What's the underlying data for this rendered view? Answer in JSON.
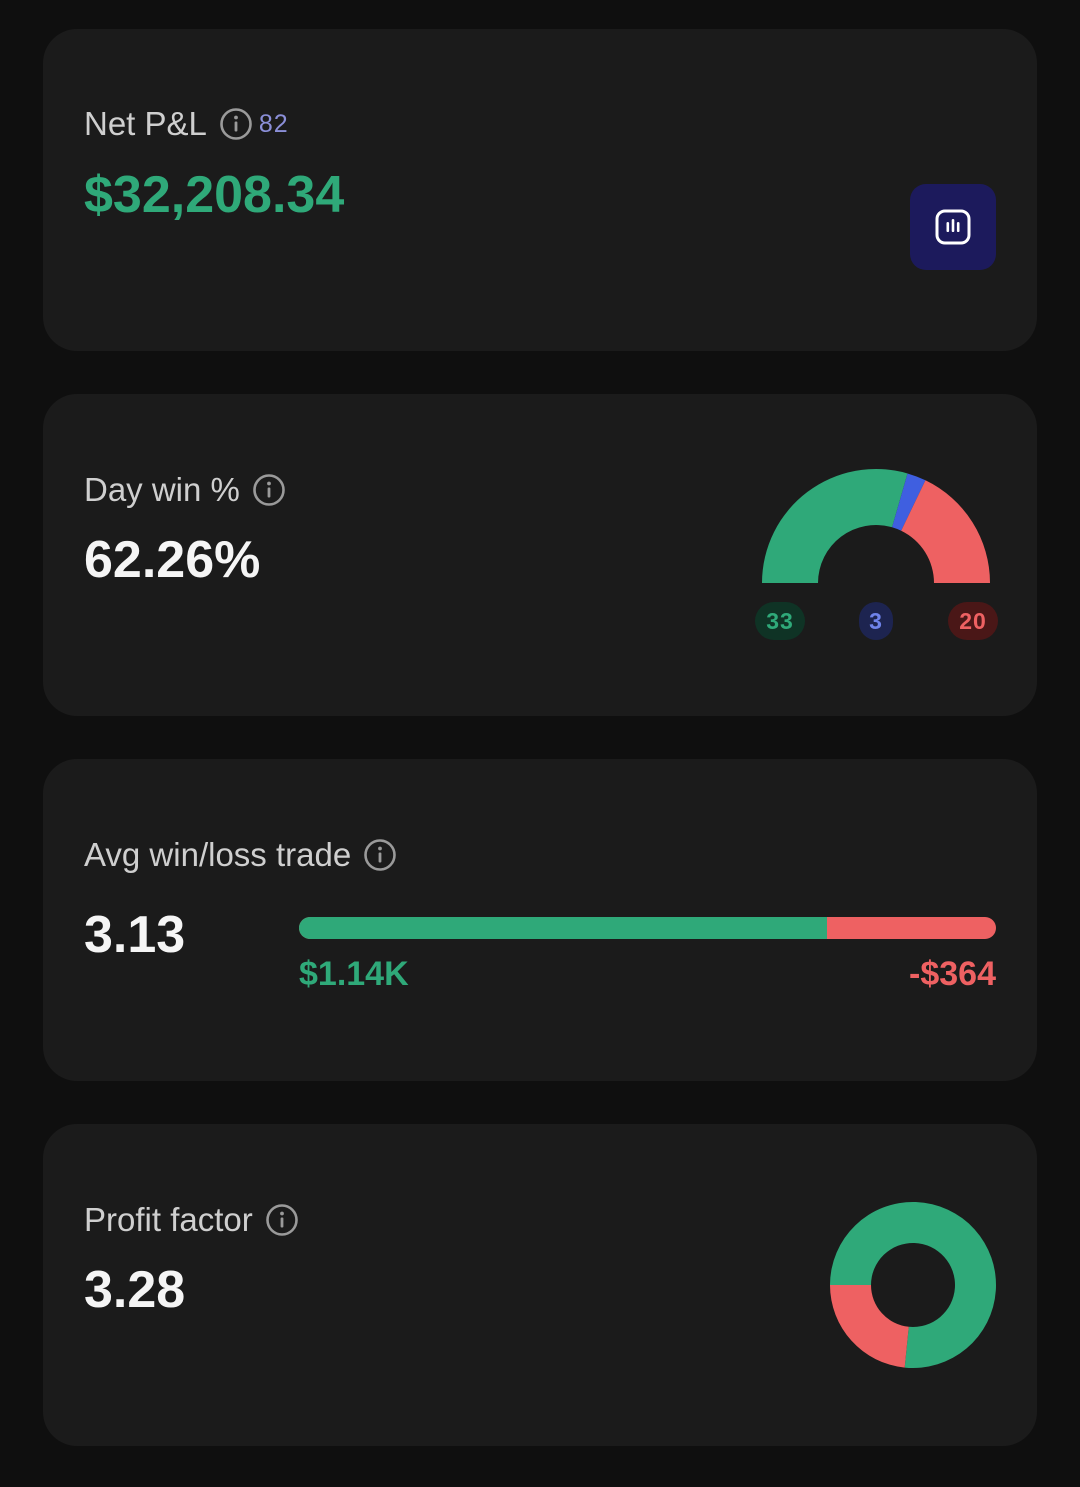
{
  "net_pnl": {
    "title": "Net P&L",
    "count": "82",
    "value": "$32,208.34",
    "chart_button_icon": "bar-chart-icon",
    "value_color": "#2fa979"
  },
  "day_win": {
    "title": "Day win %",
    "value": "62.26%",
    "gauge": {
      "wins": 33,
      "breakeven": 3,
      "losses": 20,
      "wins_label": "33",
      "breakeven_label": "3",
      "losses_label": "20"
    }
  },
  "avg_win_loss": {
    "title": "Avg win/loss trade",
    "value": "3.13",
    "avg_win_label": "$1.14K",
    "avg_loss_label": "-$364",
    "win_fraction": 0.758
  },
  "profit_factor": {
    "title": "Profit factor",
    "value": "3.28",
    "donut": {
      "profit_share": 0.766,
      "loss_share": 0.234
    }
  },
  "colors": {
    "green": "#2fa979",
    "red": "#ee6162",
    "blue": "#3f5fe0",
    "card": "#1b1b1b",
    "background": "#0f0f0f"
  },
  "icons": {
    "info": "info-icon",
    "chart": "bar-chart-icon"
  }
}
